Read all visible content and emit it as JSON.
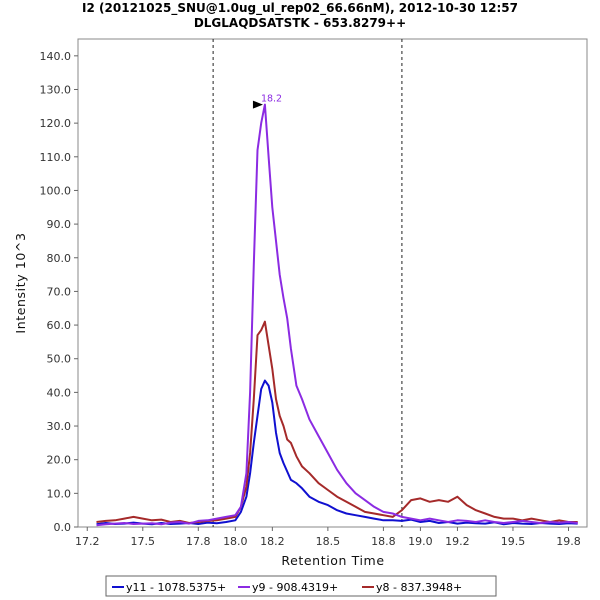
{
  "chart_data": {
    "type": "line",
    "title": "I2 (20121025_SNU@1.0ug_ul_rep02_66.66nM), 2012-10-30 12:57",
    "subtitle": "DLGLAQDSATSTK - 653.8279++",
    "xlabel": "Retention Time",
    "ylabel": "Intensity 10^3",
    "xlim": [
      17.15,
      19.9
    ],
    "ylim": [
      0,
      145
    ],
    "xticks": [
      17.2,
      17.5,
      17.8,
      18.0,
      18.2,
      18.5,
      18.8,
      19.0,
      19.2,
      19.5,
      19.8
    ],
    "xtick_labels": [
      "17.2",
      "17.5",
      "17.8",
      "18.0",
      "18.2",
      "18.5",
      "18.8",
      "19.0",
      "19.2",
      "19.5",
      "19.8"
    ],
    "yticks": [
      0,
      10,
      20,
      30,
      40,
      50,
      60,
      70,
      80,
      90,
      100,
      110,
      120,
      130,
      140
    ],
    "ytick_labels": [
      "0.0",
      "10.0",
      "20.0",
      "30.0",
      "40.0",
      "50.0",
      "60.0",
      "70.0",
      "80.0",
      "90.0",
      "100.0",
      "110.0",
      "120.0",
      "130.0",
      "140.0"
    ],
    "integration_bounds": [
      17.88,
      18.9
    ],
    "peak_annotation": {
      "label": "18.2",
      "x": 18.16,
      "y": 125.5,
      "color": "#8b2be2"
    },
    "legend_position": "bottom",
    "series": [
      {
        "name": "y11 - 1078.5375+",
        "color": "#1010d0",
        "x": [
          17.25,
          17.3,
          17.35,
          17.4,
          17.45,
          17.5,
          17.55,
          17.6,
          17.65,
          17.7,
          17.75,
          17.8,
          17.85,
          17.9,
          17.95,
          18.0,
          18.03,
          18.06,
          18.08,
          18.1,
          18.12,
          18.14,
          18.16,
          18.18,
          18.2,
          18.22,
          18.24,
          18.26,
          18.28,
          18.3,
          18.33,
          18.36,
          18.4,
          18.45,
          18.5,
          18.55,
          18.6,
          18.65,
          18.7,
          18.75,
          18.8,
          18.85,
          18.9,
          18.95,
          19.0,
          19.05,
          19.1,
          19.15,
          19.2,
          19.25,
          19.3,
          19.35,
          19.4,
          19.45,
          19.5,
          19.55,
          19.6,
          19.65,
          19.7,
          19.75,
          19.8,
          19.85
        ],
        "y": [
          0.8,
          1.2,
          0.9,
          1.0,
          1.3,
          1.0,
          0.8,
          1.2,
          0.9,
          1.0,
          1.2,
          0.9,
          1.3,
          1.1,
          1.5,
          2.0,
          4.5,
          9.0,
          16.0,
          25.0,
          33.0,
          41.0,
          43.5,
          42.0,
          37.0,
          28.0,
          22.0,
          19.0,
          16.5,
          14.0,
          13.0,
          11.5,
          9.0,
          7.5,
          6.5,
          5.0,
          4.0,
          3.5,
          3.0,
          2.5,
          2.0,
          2.0,
          1.8,
          2.2,
          1.5,
          1.8,
          1.2,
          1.5,
          1.0,
          1.3,
          1.1,
          1.0,
          1.4,
          0.8,
          1.2,
          1.0,
          0.9,
          1.2,
          1.0,
          0.9,
          1.1,
          1.0
        ]
      },
      {
        "name": "y9 - 908.4319+",
        "color": "#8b2be2",
        "x": [
          17.25,
          17.3,
          17.35,
          17.4,
          17.45,
          17.5,
          17.55,
          17.6,
          17.65,
          17.7,
          17.75,
          17.8,
          17.85,
          17.9,
          17.95,
          18.0,
          18.03,
          18.06,
          18.08,
          18.1,
          18.12,
          18.14,
          18.16,
          18.18,
          18.2,
          18.22,
          18.24,
          18.26,
          18.28,
          18.3,
          18.33,
          18.36,
          18.4,
          18.45,
          18.5,
          18.55,
          18.6,
          18.65,
          18.7,
          18.75,
          18.8,
          18.85,
          18.9,
          18.95,
          19.0,
          19.05,
          19.1,
          19.15,
          19.2,
          19.25,
          19.3,
          19.35,
          19.4,
          19.45,
          19.5,
          19.55,
          19.6,
          19.65,
          19.7,
          19.75,
          19.8,
          19.85
        ],
        "y": [
          0.5,
          0.8,
          1.0,
          1.2,
          0.9,
          1.0,
          1.1,
          0.8,
          1.3,
          1.5,
          1.0,
          1.8,
          2.0,
          2.5,
          3.0,
          3.5,
          6.0,
          16.0,
          40.0,
          78.0,
          112.0,
          120.0,
          125.5,
          110.0,
          95.0,
          85.0,
          75.0,
          68.0,
          62.0,
          53.0,
          42.0,
          38.0,
          32.0,
          27.0,
          22.0,
          17.0,
          13.0,
          10.0,
          8.0,
          6.0,
          4.5,
          4.0,
          3.0,
          2.5,
          2.0,
          2.5,
          2.0,
          1.5,
          2.0,
          1.8,
          1.5,
          2.0,
          1.5,
          1.2,
          1.5,
          1.8,
          1.5,
          1.2,
          1.5,
          1.3,
          1.5,
          1.2
        ]
      },
      {
        "name": "y8 - 837.3948+",
        "color": "#a52a2a",
        "x": [
          17.25,
          17.3,
          17.35,
          17.4,
          17.45,
          17.5,
          17.55,
          17.6,
          17.65,
          17.7,
          17.75,
          17.8,
          17.85,
          17.9,
          17.95,
          18.0,
          18.03,
          18.06,
          18.08,
          18.1,
          18.12,
          18.14,
          18.16,
          18.18,
          18.2,
          18.22,
          18.24,
          18.26,
          18.28,
          18.3,
          18.33,
          18.36,
          18.4,
          18.45,
          18.5,
          18.55,
          18.6,
          18.65,
          18.7,
          18.75,
          18.8,
          18.85,
          18.9,
          18.95,
          19.0,
          19.05,
          19.1,
          19.15,
          19.2,
          19.25,
          19.3,
          19.35,
          19.4,
          19.45,
          19.5,
          19.55,
          19.6,
          19.65,
          19.7,
          19.75,
          19.8,
          19.85
        ],
        "y": [
          1.5,
          1.8,
          2.0,
          2.5,
          3.0,
          2.5,
          2.0,
          2.2,
          1.5,
          1.8,
          1.2,
          1.5,
          1.8,
          2.0,
          2.5,
          3.0,
          6.0,
          12.0,
          22.0,
          38.0,
          57.0,
          58.5,
          61.0,
          54.0,
          47.0,
          38.0,
          33.0,
          30.0,
          26.0,
          25.0,
          21.0,
          18.0,
          16.0,
          13.0,
          11.0,
          9.0,
          7.5,
          6.0,
          4.5,
          4.0,
          3.5,
          3.0,
          5.0,
          8.0,
          8.5,
          7.5,
          8.0,
          7.5,
          9.0,
          6.5,
          5.0,
          4.0,
          3.0,
          2.5,
          2.5,
          2.0,
          2.5,
          2.0,
          1.5,
          2.0,
          1.5,
          1.5
        ]
      }
    ]
  }
}
